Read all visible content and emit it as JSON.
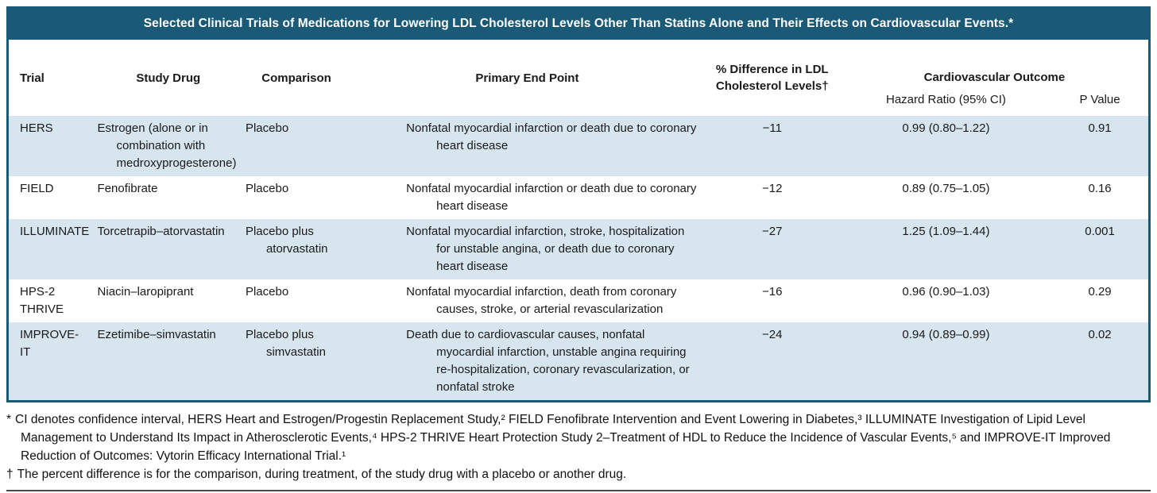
{
  "title": "Selected Clinical Trials of Medications for Lowering LDL Cholesterol Levels Other Than Statins Alone and Their Effects on Cardiovascular Events.*",
  "colors": {
    "header_teal": "#1A5A77",
    "row_stripe_blue": "#D6E5EE",
    "text": "#1a1a1a"
  },
  "table": {
    "columns": {
      "trial": "Trial",
      "study_drug": "Study Drug",
      "comparison": "Comparison",
      "primary_end_point": "Primary End Point",
      "ldl_diff": "% Difference in LDL Cholesterol Levels†",
      "cardiovascular_outcome": "Cardiovascular Outcome",
      "hazard_ratio": "Hazard Ratio (95% CI)",
      "p_value": "P Value"
    },
    "rows": [
      {
        "trial": "HERS",
        "study_drug": "Estrogen (alone or in combination with medroxyprogesterone)",
        "comparison": "Placebo",
        "primary_end_point": "Nonfatal myocardial infarction or death due to coronary heart disease",
        "ldl_diff": "−11",
        "hazard_ratio": "0.99 (0.80–1.22)",
        "p_value": "0.91"
      },
      {
        "trial": "FIELD",
        "study_drug": "Fenofibrate",
        "comparison": "Placebo",
        "primary_end_point": "Nonfatal myocardial infarction or death due to coronary heart disease",
        "ldl_diff": "−12",
        "hazard_ratio": "0.89 (0.75–1.05)",
        "p_value": "0.16"
      },
      {
        "trial": "ILLUMINATE",
        "study_drug": "Torcetrapib–atorvastatin",
        "comparison": "Placebo plus atorvastatin",
        "primary_end_point": "Nonfatal myocardial infarction, stroke, hospitalization for unstable angina, or death due to coronary heart disease",
        "ldl_diff": "−27",
        "hazard_ratio": "1.25 (1.09–1.44)",
        "p_value": "0.001"
      },
      {
        "trial": "HPS-2 THRIVE",
        "study_drug": "Niacin–laropiprant",
        "comparison": "Placebo",
        "primary_end_point": "Nonfatal myocardial infarction, death from coronary causes, stroke, or arterial revascularization",
        "ldl_diff": "−16",
        "hazard_ratio": "0.96 (0.90–1.03)",
        "p_value": "0.29"
      },
      {
        "trial": "IMPROVE-IT",
        "study_drug": "Ezetimibe–simvastatin",
        "comparison": "Placebo plus simvastatin",
        "primary_end_point": "Death due to cardiovascular causes, nonfatal myocardial infarction, unstable angina requiring re-hospitalization, coronary revascularization, or nonfatal stroke",
        "ldl_diff": "−24",
        "hazard_ratio": "0.94 (0.89–0.99)",
        "p_value": "0.02"
      }
    ]
  },
  "footnotes": [
    {
      "marker": "*",
      "text": "CI denotes confidence interval, HERS Heart and Estrogen/Progestin Replacement Study,² FIELD Fenofibrate Intervention and Event Lowering in Diabetes,³ ILLUMINATE Investigation of Lipid Level Management to Understand Its Impact in Atherosclerotic Events,⁴ HPS-2 THRIVE Heart Protection Study 2–Treatment of HDL to Reduce the Incidence of Vascular Events,⁵ and IMPROVE-IT Improved Reduction of Outcomes: Vytorin Efficacy International Trial.¹"
    },
    {
      "marker": "†",
      "text": "The percent difference is for the comparison, during treatment, of the study drug with a placebo or another drug."
    }
  ]
}
